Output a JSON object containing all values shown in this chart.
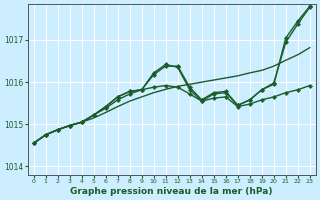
{
  "xlabel": "Graphe pression niveau de la mer (hPa)",
  "background_color": "#cceeff",
  "grid_color": "#ffffff",
  "line_color": "#1a5c2a",
  "x_ticks": [
    0,
    1,
    2,
    3,
    4,
    5,
    6,
    7,
    8,
    9,
    10,
    11,
    12,
    13,
    14,
    15,
    16,
    17,
    18,
    19,
    20,
    21,
    22,
    23
  ],
  "ylim": [
    1013.8,
    1017.85
  ],
  "yticks": [
    1014,
    1015,
    1016,
    1017
  ],
  "series": [
    {
      "values": [
        1014.55,
        1014.75,
        1014.87,
        1014.97,
        1015.05,
        1015.15,
        1015.28,
        1015.42,
        1015.55,
        1015.65,
        1015.75,
        1015.83,
        1015.9,
        1015.95,
        1016.0,
        1016.05,
        1016.1,
        1016.15,
        1016.22,
        1016.28,
        1016.38,
        1016.52,
        1016.65,
        1016.82
      ],
      "markers": false,
      "linewidth": 1.0
    },
    {
      "values": [
        1014.55,
        1014.75,
        1014.87,
        1014.97,
        1015.05,
        1015.22,
        1015.38,
        1015.58,
        1015.72,
        1015.82,
        1016.18,
        1016.38,
        1016.38,
        1015.88,
        1015.58,
        1015.75,
        1015.78,
        1015.45,
        1015.58,
        1015.82,
        1015.98,
        1016.95,
        1017.38,
        1017.78
      ],
      "markers": true,
      "linewidth": 1.0
    },
    {
      "values": [
        1014.55,
        1014.75,
        1014.87,
        1014.97,
        1015.05,
        1015.22,
        1015.42,
        1015.65,
        1015.78,
        1015.82,
        1016.22,
        1016.42,
        1016.35,
        1015.82,
        1015.55,
        1015.72,
        1015.75,
        1015.45,
        1015.58,
        1015.82,
        1015.95,
        1017.05,
        1017.45,
        1017.8
      ],
      "markers": true,
      "linewidth": 1.0
    },
    {
      "values": [
        1014.55,
        1014.75,
        1014.87,
        1014.97,
        1015.05,
        1015.22,
        1015.42,
        1015.65,
        1015.78,
        1015.82,
        1015.88,
        1015.92,
        1015.88,
        1015.72,
        1015.55,
        1015.62,
        1015.65,
        1015.42,
        1015.48,
        1015.58,
        1015.65,
        1015.75,
        1015.82,
        1015.92
      ],
      "markers": true,
      "linewidth": 1.0
    }
  ]
}
